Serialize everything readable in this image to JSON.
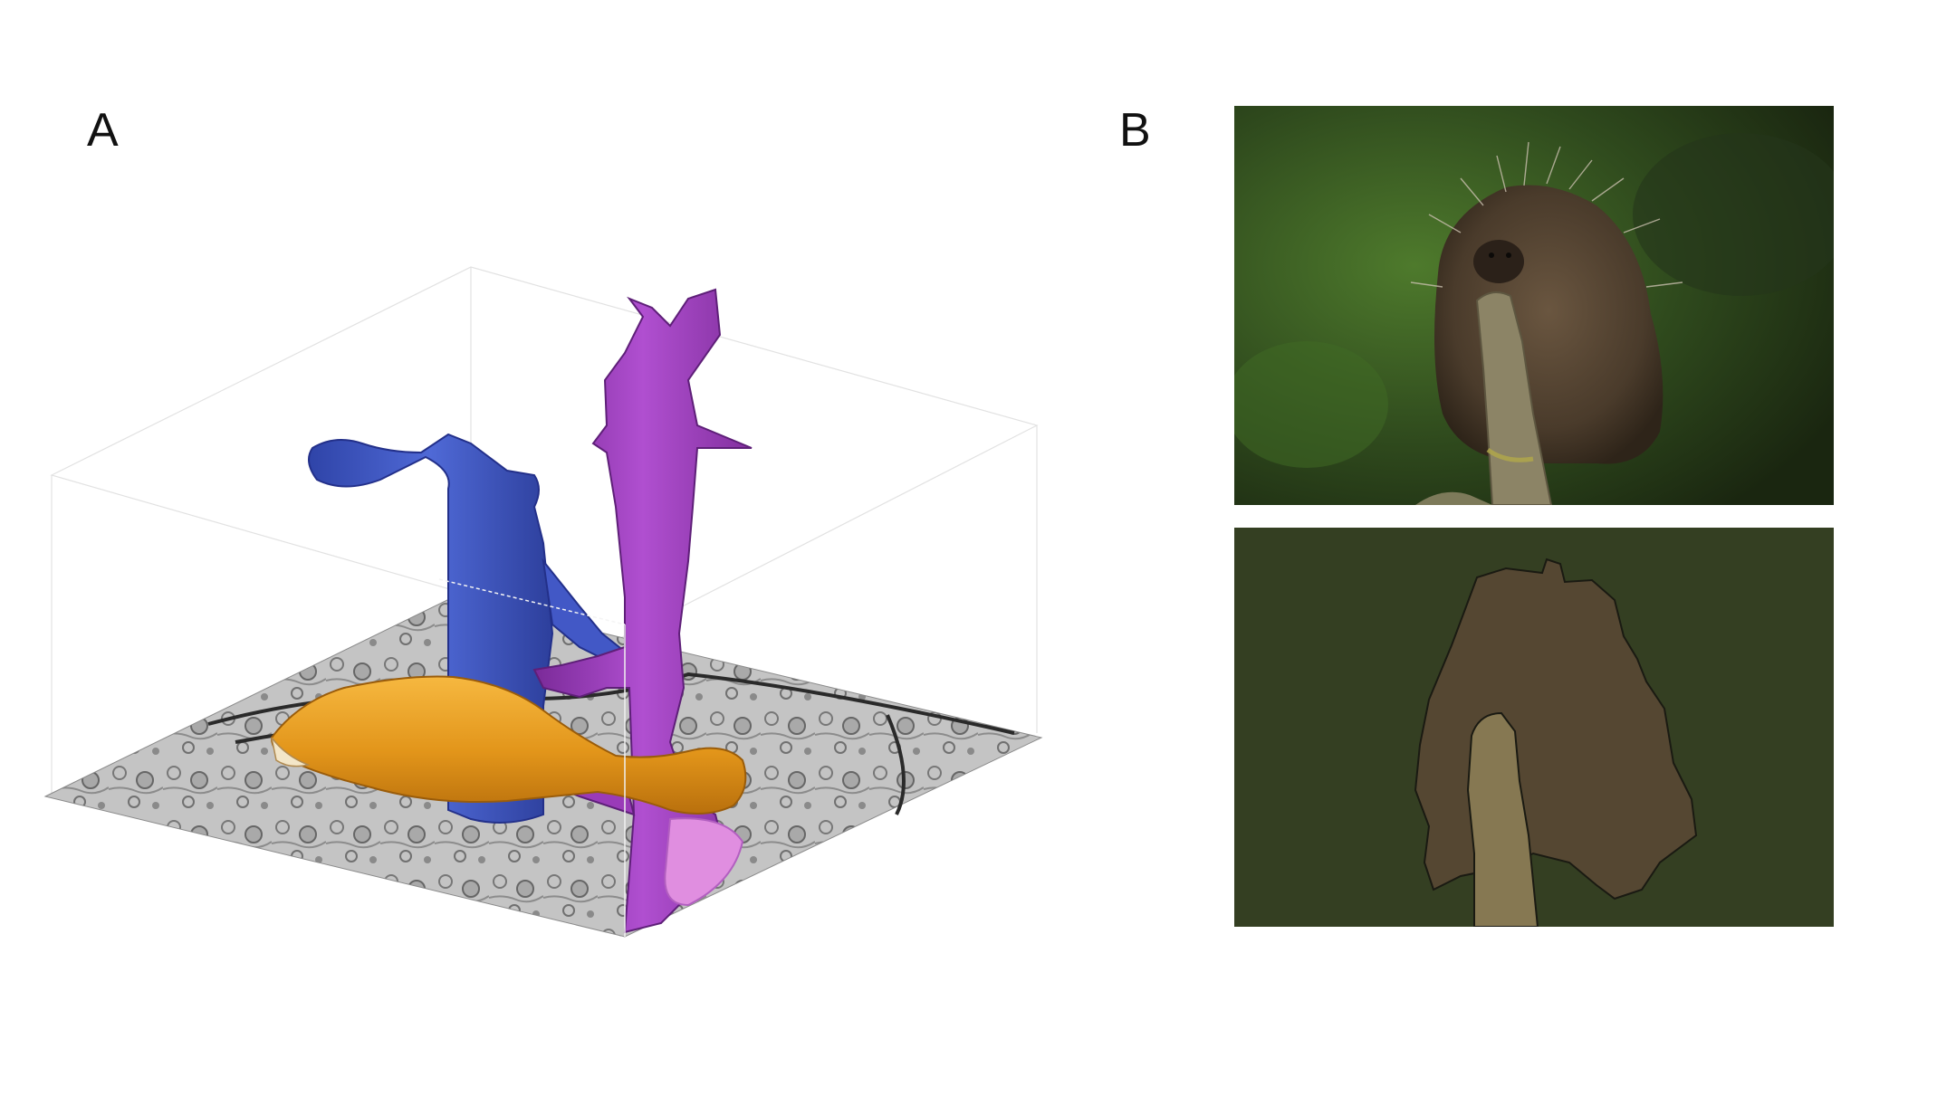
{
  "figure": {
    "panel_a": {
      "label": "A",
      "segments": [
        {
          "name": "neuron-blue",
          "color": "#3f57c4"
        },
        {
          "name": "neuron-purple",
          "color": "#9a3bb8"
        },
        {
          "name": "neuron-orange",
          "color": "#e49a1d"
        }
      ],
      "em_slice_color": "#b9b9b9"
    },
    "panel_b": {
      "label": "B",
      "photo_subject": "porcupine-on-branch",
      "segmentation_colors": {
        "background": "#343f22",
        "porcupine": "#554732",
        "branch": "#867852"
      }
    }
  }
}
